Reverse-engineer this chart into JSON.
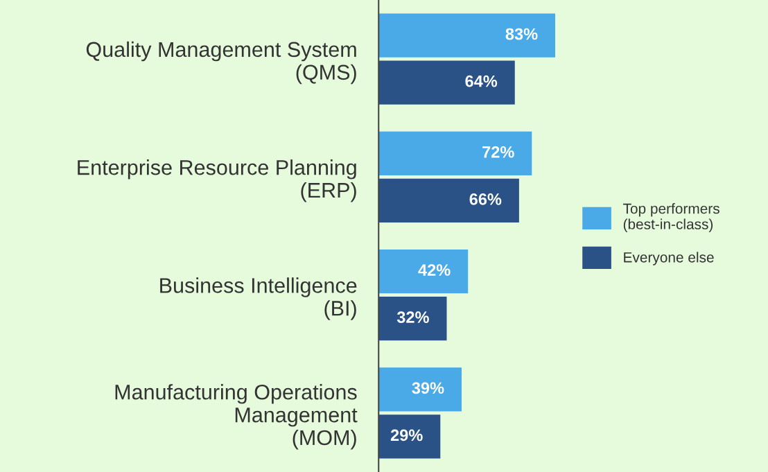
{
  "chart_data": {
    "type": "bar",
    "orientation": "horizontal",
    "categories": [
      "Quality Management System\n(QMS)",
      "Enterprise Resource Planning\n(ERP)",
      "Business Intelligence\n(BI)",
      "Manufacturing Operations\nManagement\n(MOM)"
    ],
    "series": [
      {
        "name": "Top performers\n(best-in-class)",
        "color": "#4aaae8",
        "values": [
          83,
          72,
          42,
          39
        ],
        "value_labels": [
          "83%",
          "72%",
          "42%",
          "39%"
        ]
      },
      {
        "name": "Everyone else",
        "color": "#2b5286",
        "values": [
          64,
          66,
          32,
          29
        ],
        "value_labels": [
          "64%",
          "66%",
          "32%",
          "29%"
        ]
      }
    ],
    "legend": "right",
    "tick_labels": "y"
  }
}
